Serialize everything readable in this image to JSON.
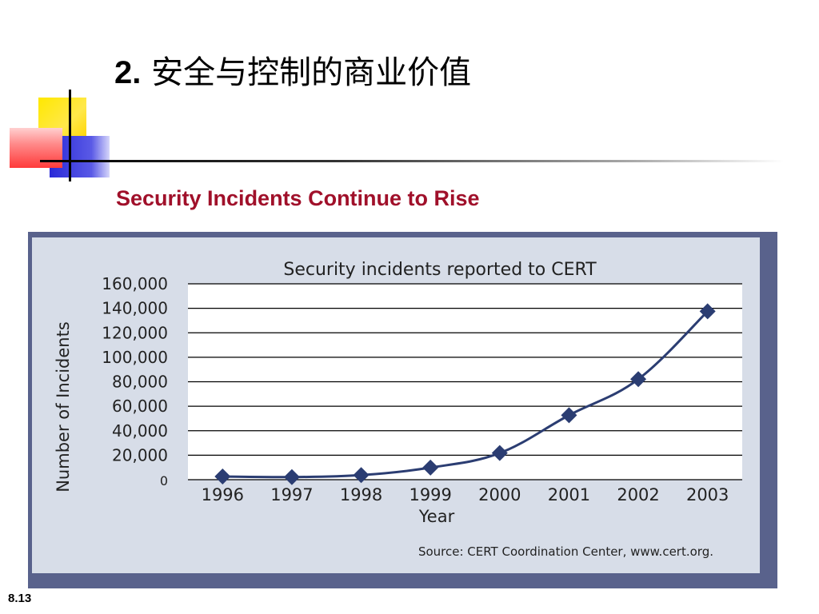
{
  "slide": {
    "title_number": "2.",
    "title_text": "安全与控制的商业价值",
    "subtitle": "Security Incidents Continue to Rise",
    "page_number": "8.13"
  },
  "chart_data": {
    "type": "line",
    "title": "Security incidents reported to CERT",
    "xlabel": "Year",
    "ylabel": "Number of Incidents",
    "categories": [
      "1996",
      "1997",
      "1998",
      "1999",
      "2000",
      "2001",
      "2002",
      "2003"
    ],
    "series": [
      {
        "values": [
          2573,
          2134,
          3734,
          9859,
          21756,
          52658,
          82094,
          137529
        ]
      }
    ],
    "ylim": [
      0,
      160000
    ],
    "yticks": [
      "0",
      "20,000",
      "40,000",
      "60,000",
      "80,000",
      "100,000",
      "120,000",
      "140,000",
      "160,000"
    ],
    "grid": true,
    "source": "Source: CERT Coordination Center, www.cert.org.",
    "colors": {
      "line": "#2b3d72",
      "marker": "#2b3d72",
      "grid": "#000000",
      "plot_bg": "#ffffff",
      "panel_bg": "#d7dde8",
      "frame": "#59628c"
    }
  }
}
